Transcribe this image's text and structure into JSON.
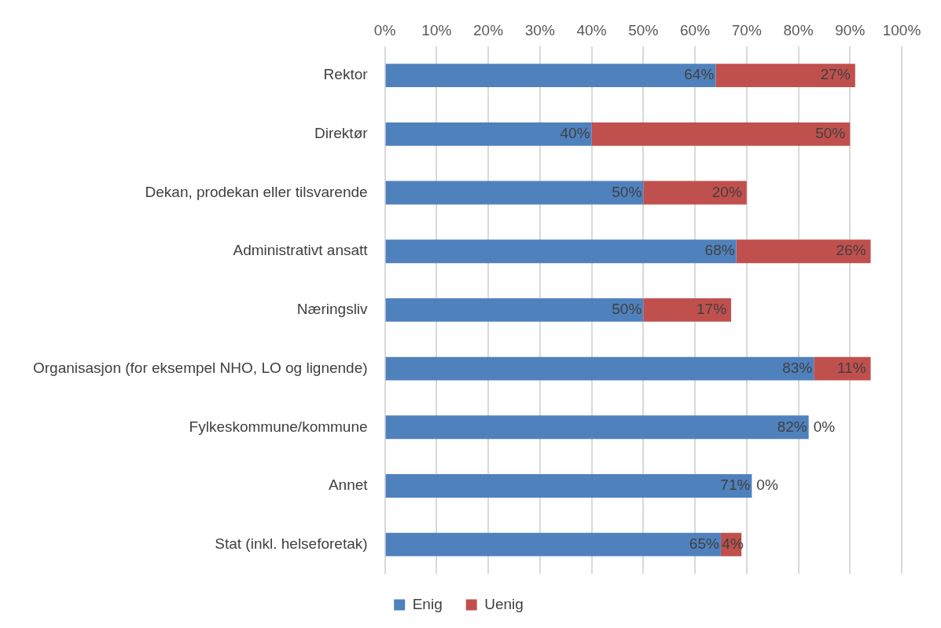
{
  "chart_data": {
    "type": "bar",
    "orientation": "horizontal",
    "stacked": true,
    "categories": [
      "Rektor",
      "Direktør",
      "Dekan, prodekan eller tilsvarende",
      "Administrativt ansatt",
      "Næringsliv",
      "Organisasjon (for eksempel NHO, LO og lignende)",
      "Fylkeskommune/kommune",
      "Annet",
      "Stat (inkl. helseforetak)"
    ],
    "series": [
      {
        "name": "Enig",
        "color": "#4f81bd",
        "values": [
          64,
          40,
          50,
          68,
          50,
          83,
          82,
          71,
          65
        ],
        "value_labels": [
          "64%",
          "40%",
          "50%",
          "68%",
          "50%",
          "83%",
          "82%",
          "71%",
          "65%"
        ]
      },
      {
        "name": "Uenig",
        "color": "#c0504d",
        "values": [
          27,
          50,
          20,
          26,
          17,
          11,
          0,
          0,
          4
        ],
        "value_labels": [
          "27%",
          "50%",
          "20%",
          "26%",
          "17%",
          "11%",
          "0%",
          "0%",
          "4%"
        ]
      }
    ],
    "xlim": [
      0,
      100
    ],
    "xticks": [
      {
        "value": 0,
        "label": "0%"
      },
      {
        "value": 10,
        "label": "10%"
      },
      {
        "value": 20,
        "label": "20%"
      },
      {
        "value": 30,
        "label": "30%"
      },
      {
        "value": 40,
        "label": "40%"
      },
      {
        "value": 50,
        "label": "50%"
      },
      {
        "value": 60,
        "label": "60%"
      },
      {
        "value": 70,
        "label": "70%"
      },
      {
        "value": 80,
        "label": "80%"
      },
      {
        "value": 90,
        "label": "90%"
      },
      {
        "value": 100,
        "label": "100%"
      }
    ],
    "grid": "x",
    "legend": "bottom"
  }
}
